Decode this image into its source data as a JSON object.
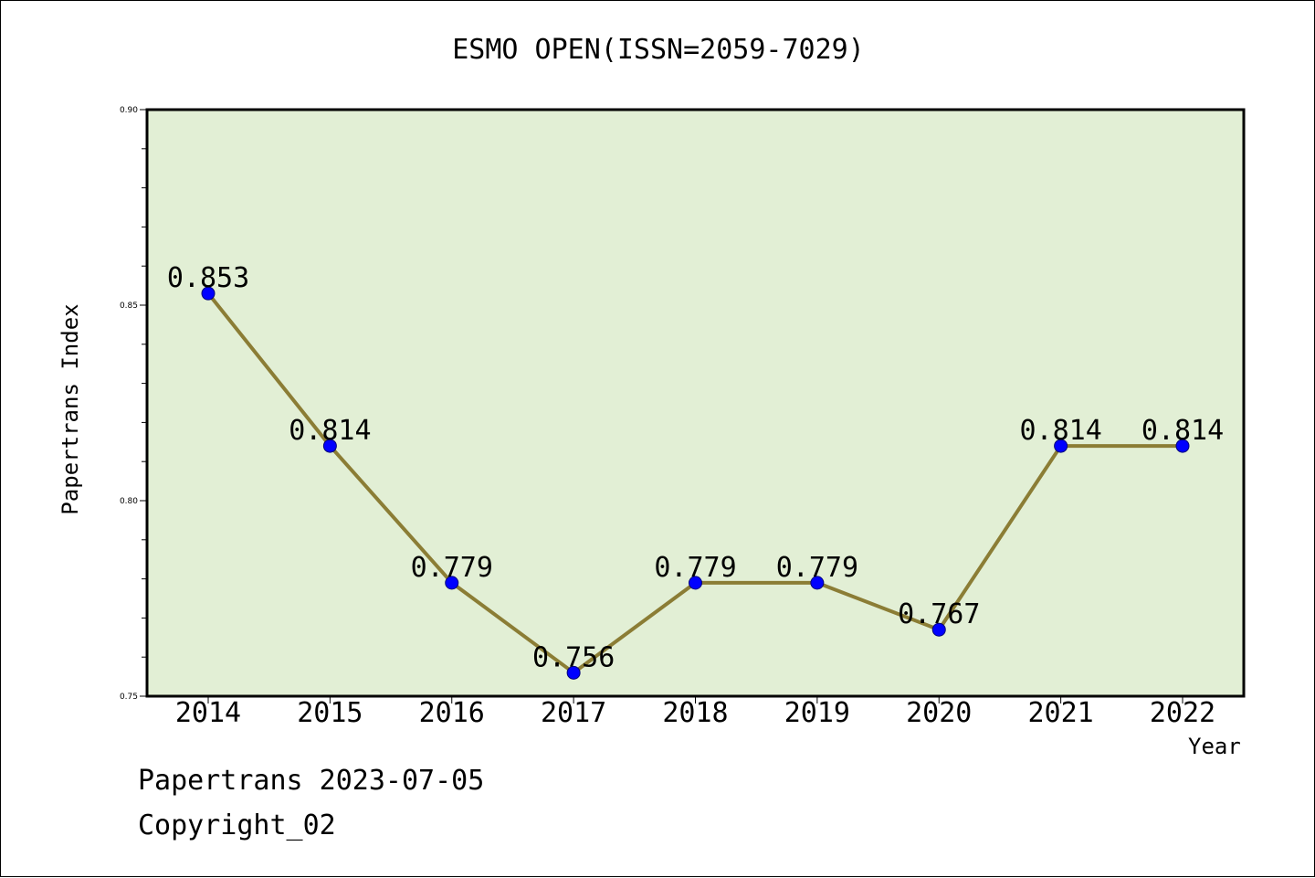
{
  "chart_data": {
    "type": "line",
    "title": "ESMO OPEN(ISSN=2059-7029)",
    "xlabel": "Year",
    "ylabel": "Papertrans Index",
    "categories": [
      "2014",
      "2015",
      "2016",
      "2017",
      "2018",
      "2019",
      "2020",
      "2021",
      "2022"
    ],
    "series": [
      {
        "values": [
          0.853,
          0.814,
          0.779,
          0.756,
          0.779,
          0.779,
          0.767,
          0.814,
          0.814
        ],
        "labels": [
          "0.853",
          "0.814",
          "0.779",
          "0.756",
          "0.779",
          "0.779",
          "0.767",
          "0.814",
          "0.814"
        ]
      }
    ],
    "ylim": [
      0.75,
      0.9
    ],
    "yticks": [
      "0.90",
      "0.85",
      "0.80",
      "0.75"
    ],
    "grid": false,
    "colors": {
      "plot_background": "#e2efd5",
      "line": "#8b7d35",
      "marker": "#0000ff"
    }
  },
  "footer": {
    "line1": "Papertrans 2023-07-05",
    "line2": "Copyright_02"
  }
}
